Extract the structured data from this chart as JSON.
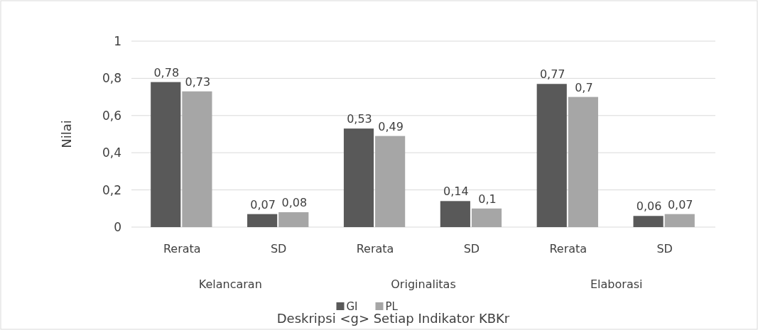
{
  "chart_data": {
    "type": "bar",
    "title": "Deskripsi <g> Setiap Indikator KBKr",
    "ylabel": "Nilai",
    "categories": [
      "Rerata",
      "SD",
      "Rerata",
      "SD",
      "Rerata",
      "SD"
    ],
    "annotations": [
      "Kelancaran",
      "Originalitas",
      "Elaborasi"
    ],
    "series": [
      {
        "name": "GI",
        "color": "#595959",
        "values": [
          0.78,
          0.07,
          0.53,
          0.14,
          0.77,
          0.06
        ],
        "value_labels": [
          "0,78",
          "0,07",
          "0,53",
          "0,14",
          "0,77",
          "0,06"
        ]
      },
      {
        "name": "PL",
        "color": "#a6a6a6",
        "values": [
          0.73,
          0.08,
          0.49,
          0.1,
          0.7,
          0.07
        ],
        "value_labels": [
          "0,73",
          "0,08",
          "0,49",
          "0,1",
          "0,7",
          "0,07"
        ]
      }
    ],
    "ylim": [
      0,
      1
    ],
    "yticks": [
      0,
      {
        "value": 0.2,
        "label": "0,2"
      },
      {
        "value": 0.4,
        "label": "0,4"
      },
      {
        "value": 0.6,
        "label": "0,6"
      },
      {
        "value": 0.8,
        "label": "0,8"
      },
      1
    ],
    "grid": "y",
    "legend": "bottom"
  }
}
